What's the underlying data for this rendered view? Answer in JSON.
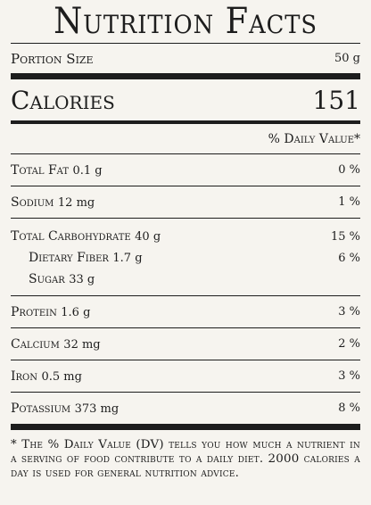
{
  "title": "Nutrition Facts",
  "portion": {
    "label": "Portion Size",
    "value": "50 g"
  },
  "calories": {
    "label": "Calories",
    "value": "151"
  },
  "daily_value_header": "% Daily Value*",
  "nutrients": [
    {
      "name": "Total Fat",
      "amount": "0.1 g",
      "dv": "0 %"
    },
    {
      "name": "Sodium",
      "amount": "12 mg",
      "dv": "1 %"
    }
  ],
  "carbohydrate": {
    "name": "Total Carbohydrate",
    "amount": "40 g",
    "dv": "15 %",
    "fiber": {
      "name": "Dietary Fiber",
      "amount": "1.7 g",
      "dv": "6 %"
    },
    "sugar": {
      "name": "Sugar",
      "amount": "33 g"
    }
  },
  "nutrients_after": [
    {
      "name": "Protein",
      "amount": "1.6 g",
      "dv": "3 %"
    },
    {
      "name": "Calcium",
      "amount": "32 mg",
      "dv": "2 %"
    },
    {
      "name": "Iron",
      "amount": "0.5 mg",
      "dv": "3 %"
    },
    {
      "name": "Potassium",
      "amount": "373 mg",
      "dv": "8 %"
    }
  ],
  "footnote": "* The % Daily Value (DV) tells you how much a nutrient in a serving of food contribute to a daily diet. 2000 calories a day is used for general nutrition advice."
}
